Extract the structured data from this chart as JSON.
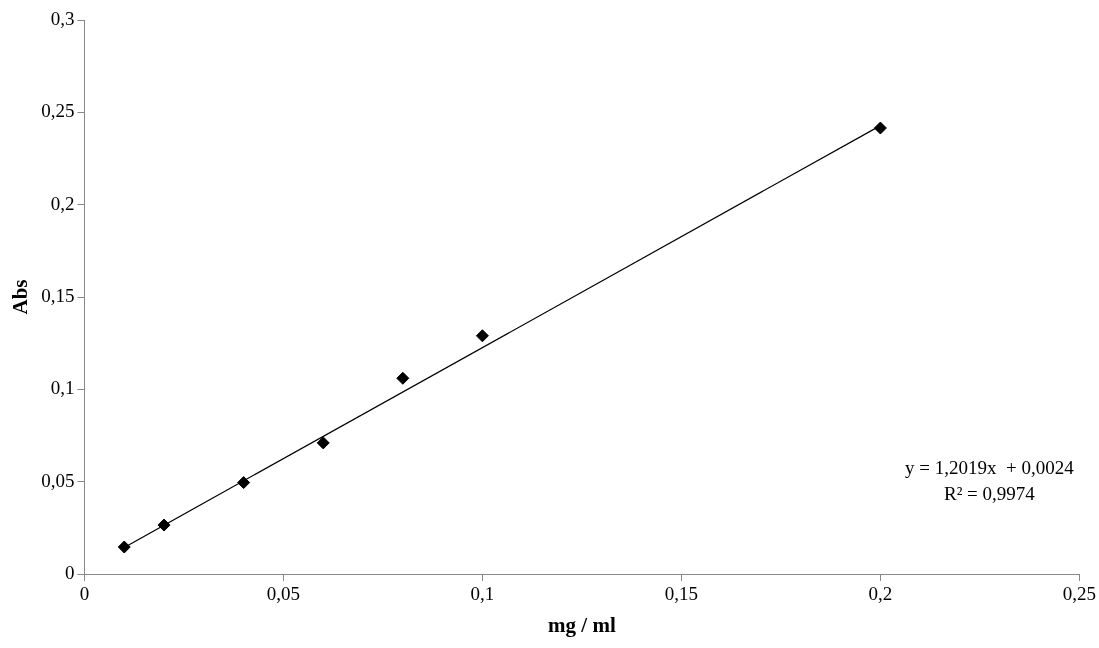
{
  "chart_data": {
    "type": "scatter",
    "xlabel": "mg / ml",
    "ylabel": "Abs",
    "x": [
      0.01,
      0.02,
      0.04,
      0.06,
      0.08,
      0.1,
      0.2
    ],
    "series": [
      {
        "color": "#000000",
        "values": [
          0.0146,
          0.0265,
          0.0495,
          0.071,
          0.106,
          0.129,
          0.2415
        ]
      },
      {
        "type": "line",
        "color": "#000000",
        "x": [
          0.01,
          0.2
        ],
        "values": [
          0.0144,
          0.2428
        ],
        "marker": "none"
      }
    ],
    "xlim": [
      0,
      0.25
    ],
    "xticks": [
      0,
      {
        "value": 0.05,
        "label": "0,05"
      },
      {
        "value": 0.1,
        "label": "0,1"
      },
      {
        "value": 0.15,
        "label": "0,15"
      },
      {
        "value": 0.2,
        "label": "0,2"
      },
      {
        "value": 0.25,
        "label": "0,25"
      }
    ],
    "ylim": [
      0,
      0.3
    ],
    "yticks": [
      0,
      {
        "value": 0.05,
        "label": "0,05"
      },
      {
        "value": 0.1,
        "label": "0,1"
      },
      {
        "value": 0.15,
        "label": "0,15"
      },
      {
        "value": 0.2,
        "label": "0,2"
      },
      {
        "value": 0.25,
        "label": "0,25"
      },
      {
        "value": 0.3,
        "label": "0,3"
      }
    ],
    "annotations": [
      "y = 1,2019x  + 0,0024",
      "R² = 0,9974"
    ],
    "grid": false,
    "legend": false,
    "marker": "diamond",
    "line_style": "solid"
  }
}
